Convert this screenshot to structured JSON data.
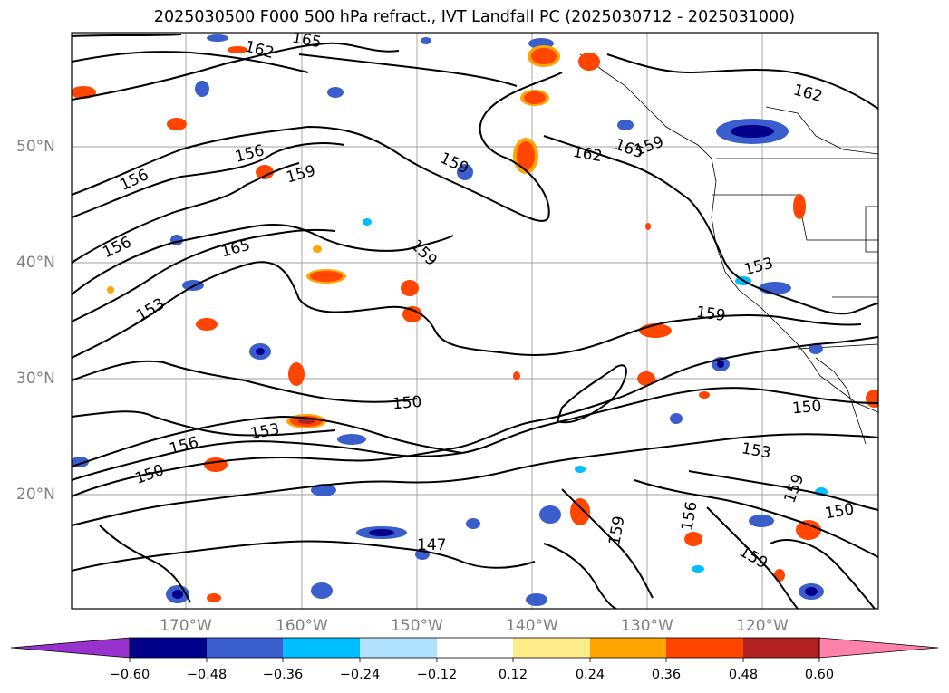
{
  "title": "2025030500 F000 500 hPa refract., IVT Landfall PC (2025030712 - 2025031000)",
  "latitude_labels": [
    "50°N",
    "40°N",
    "30°N",
    "20°N"
  ],
  "longitude_labels": [
    "170°W",
    "160°W",
    "150°W",
    "140°W",
    "130°W",
    "120°W"
  ],
  "contour_labels": [
    "165",
    "162",
    "156",
    "159",
    "165",
    "156",
    "159",
    "162",
    "165",
    "159",
    "156",
    "159",
    "153",
    "153",
    "159",
    "150",
    "153",
    "156",
    "150",
    "150",
    "153",
    "147",
    "159",
    "156",
    "159",
    "150",
    "159"
  ],
  "colorbar": {
    "tick_labels": [
      "−0.60",
      "−0.48",
      "−0.36",
      "−0.24",
      "−0.12",
      "0.12",
      "0.24",
      "0.36",
      "0.48",
      "0.60"
    ],
    "colors": [
      "#9932cc",
      "#00008b",
      "#3a5fcd",
      "#00bfff",
      "#b0e2ff",
      "#ffffff",
      "#ffec8b",
      "#ffa500",
      "#ff4500",
      "#b22222",
      "#ff82ab"
    ]
  },
  "colors": {
    "contour": "#000000",
    "grid": "#a0a0a0",
    "coast": "#000000",
    "axis_label": "#808080"
  }
}
